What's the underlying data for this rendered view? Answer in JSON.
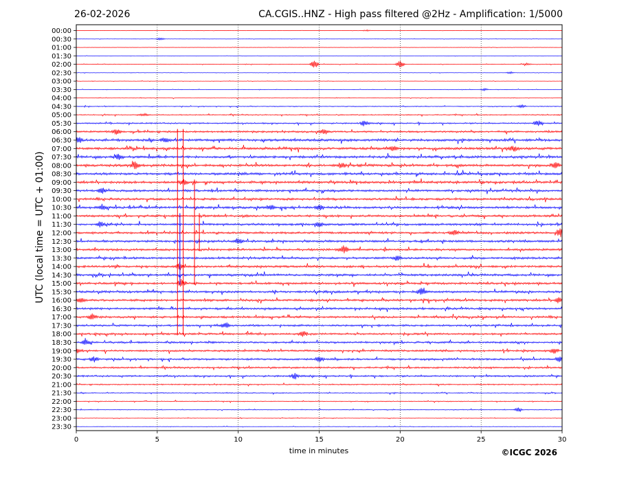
{
  "chart_data": {
    "type": "line",
    "title_left": "26-02-2026",
    "title_right": "CA.CGIS..HNZ - High pass filtered @2Hz - Amplification: 1/5000",
    "xlabel": "time in minutes",
    "ylabel": "UTC (local time = UTC + 01:00)",
    "copyright": "©ICGC 2026",
    "xlim": [
      0,
      30
    ],
    "x_ticks": [
      "0",
      "5",
      "10",
      "15",
      "20",
      "25",
      "30"
    ],
    "x_tick_values": [
      0,
      5,
      10,
      15,
      20,
      25,
      30
    ],
    "grid_x": [
      5,
      10,
      15,
      20,
      25
    ],
    "rows": [
      "00:00",
      "00:30",
      "01:00",
      "01:30",
      "02:00",
      "02:30",
      "03:00",
      "03:30",
      "04:00",
      "04:30",
      "05:00",
      "05:30",
      "06:00",
      "06:30",
      "07:00",
      "07:30",
      "08:00",
      "08:30",
      "09:00",
      "09:30",
      "10:00",
      "10:30",
      "11:00",
      "11:30",
      "12:00",
      "12:30",
      "13:00",
      "13:30",
      "14:00",
      "14:30",
      "15:00",
      "15:30",
      "16:00",
      "16:30",
      "17:00",
      "17:30",
      "18:00",
      "18:30",
      "19:00",
      "19:30",
      "20:00",
      "20:30",
      "21:00",
      "21:30",
      "22:00",
      "22:30",
      "23:00",
      "23:30"
    ],
    "series_colors": [
      "#ff0000",
      "#0000ff"
    ],
    "noise_level": [
      0.3,
      0.3,
      0.3,
      0.3,
      0.6,
      0.4,
      0.4,
      0.5,
      0.6,
      0.9,
      1.2,
      1.6,
      2.2,
      2.8,
      2.8,
      2.8,
      2.8,
      2.8,
      2.8,
      2.6,
      2.6,
      2.6,
      2.5,
      2.5,
      2.5,
      2.5,
      2.5,
      2.5,
      2.5,
      2.5,
      2.5,
      2.5,
      2.5,
      2.4,
      2.4,
      2.2,
      2.2,
      2.2,
      2.2,
      2.2,
      2.0,
      2.0,
      1.4,
      1.0,
      0.9,
      0.8,
      0.6,
      0.5
    ],
    "events": [
      {
        "row": 0,
        "x": 17.9,
        "amp": 1
      },
      {
        "row": 1,
        "x": 5.2,
        "amp": 2
      },
      {
        "row": 4,
        "x": 14.7,
        "amp": 6
      },
      {
        "row": 4,
        "x": 20.0,
        "amp": 5
      },
      {
        "row": 4,
        "x": 27.8,
        "amp": 1.5
      },
      {
        "row": 5,
        "x": 26.8,
        "amp": 1.5
      },
      {
        "row": 7,
        "x": 25.2,
        "amp": 1.5
      },
      {
        "row": 9,
        "x": 27.5,
        "amp": 2
      },
      {
        "row": 10,
        "x": 4.2,
        "amp": 2
      },
      {
        "row": 11,
        "x": 17.8,
        "amp": 4
      },
      {
        "row": 11,
        "x": 28.5,
        "amp": 5
      },
      {
        "row": 12,
        "x": 2.5,
        "amp": 4
      },
      {
        "row": 12,
        "x": 15.3,
        "amp": 4
      },
      {
        "row": 13,
        "x": 0.1,
        "amp": 5
      },
      {
        "row": 13,
        "x": 5.5,
        "amp": 4
      },
      {
        "row": 14,
        "x": 19.6,
        "amp": 4
      },
      {
        "row": 14,
        "x": 27.0,
        "amp": 4
      },
      {
        "row": 15,
        "x": 2.6,
        "amp": 4
      },
      {
        "row": 16,
        "x": 3.6,
        "amp": 5
      },
      {
        "row": 16,
        "x": 16.4,
        "amp": 4
      },
      {
        "row": 16,
        "x": 29.6,
        "amp": 4
      },
      {
        "row": 18,
        "x": 6.6,
        "amp": 4
      },
      {
        "row": 19,
        "x": 1.6,
        "amp": 4
      },
      {
        "row": 21,
        "x": 1.6,
        "amp": 4
      },
      {
        "row": 21,
        "x": 12.0,
        "amp": 4
      },
      {
        "row": 21,
        "x": 15.0,
        "amp": 4
      },
      {
        "row": 23,
        "x": 1.5,
        "amp": 4
      },
      {
        "row": 23,
        "x": 15.0,
        "amp": 4
      },
      {
        "row": 24,
        "x": 23.3,
        "amp": 4
      },
      {
        "row": 24,
        "x": 29.9,
        "amp": 6
      },
      {
        "row": 25,
        "x": 10.0,
        "amp": 4
      },
      {
        "row": 26,
        "x": 16.5,
        "amp": 5
      },
      {
        "row": 27,
        "x": 19.8,
        "amp": 4
      },
      {
        "row": 28,
        "x": 6.4,
        "amp": 5
      },
      {
        "row": 30,
        "x": 6.5,
        "amp": 6
      },
      {
        "row": 31,
        "x": 21.3,
        "amp": 5
      },
      {
        "row": 32,
        "x": 0.3,
        "amp": 4
      },
      {
        "row": 32,
        "x": 29.8,
        "amp": 4
      },
      {
        "row": 34,
        "x": 1.0,
        "amp": 4
      },
      {
        "row": 35,
        "x": 9.2,
        "amp": 4
      },
      {
        "row": 36,
        "x": 14.0,
        "amp": 4
      },
      {
        "row": 37,
        "x": 0.6,
        "amp": 4
      },
      {
        "row": 38,
        "x": 0.0,
        "amp": 4
      },
      {
        "row": 38,
        "x": 29.5,
        "amp": 4
      },
      {
        "row": 39,
        "x": 1.1,
        "amp": 4
      },
      {
        "row": 39,
        "x": 15.0,
        "amp": 4
      },
      {
        "row": 39,
        "x": 29.9,
        "amp": 4
      },
      {
        "row": 41,
        "x": 13.5,
        "amp": 4
      },
      {
        "row": 45,
        "x": 27.3,
        "amp": 3
      }
    ],
    "big_spikes": [
      {
        "x": 6.25,
        "from_row": 12,
        "to_row": 36,
        "color": "#ff0000"
      },
      {
        "x": 6.6,
        "from_row": 12,
        "to_row": 36,
        "color": "#ff0000"
      },
      {
        "x": 7.3,
        "from_row": 18,
        "to_row": 30,
        "color": "#ff0000"
      },
      {
        "x": 7.6,
        "from_row": 22,
        "to_row": 26,
        "color": "#ff0000"
      },
      {
        "x": 6.4,
        "from_row": 22,
        "to_row": 30,
        "color": "#0000ff"
      }
    ]
  }
}
